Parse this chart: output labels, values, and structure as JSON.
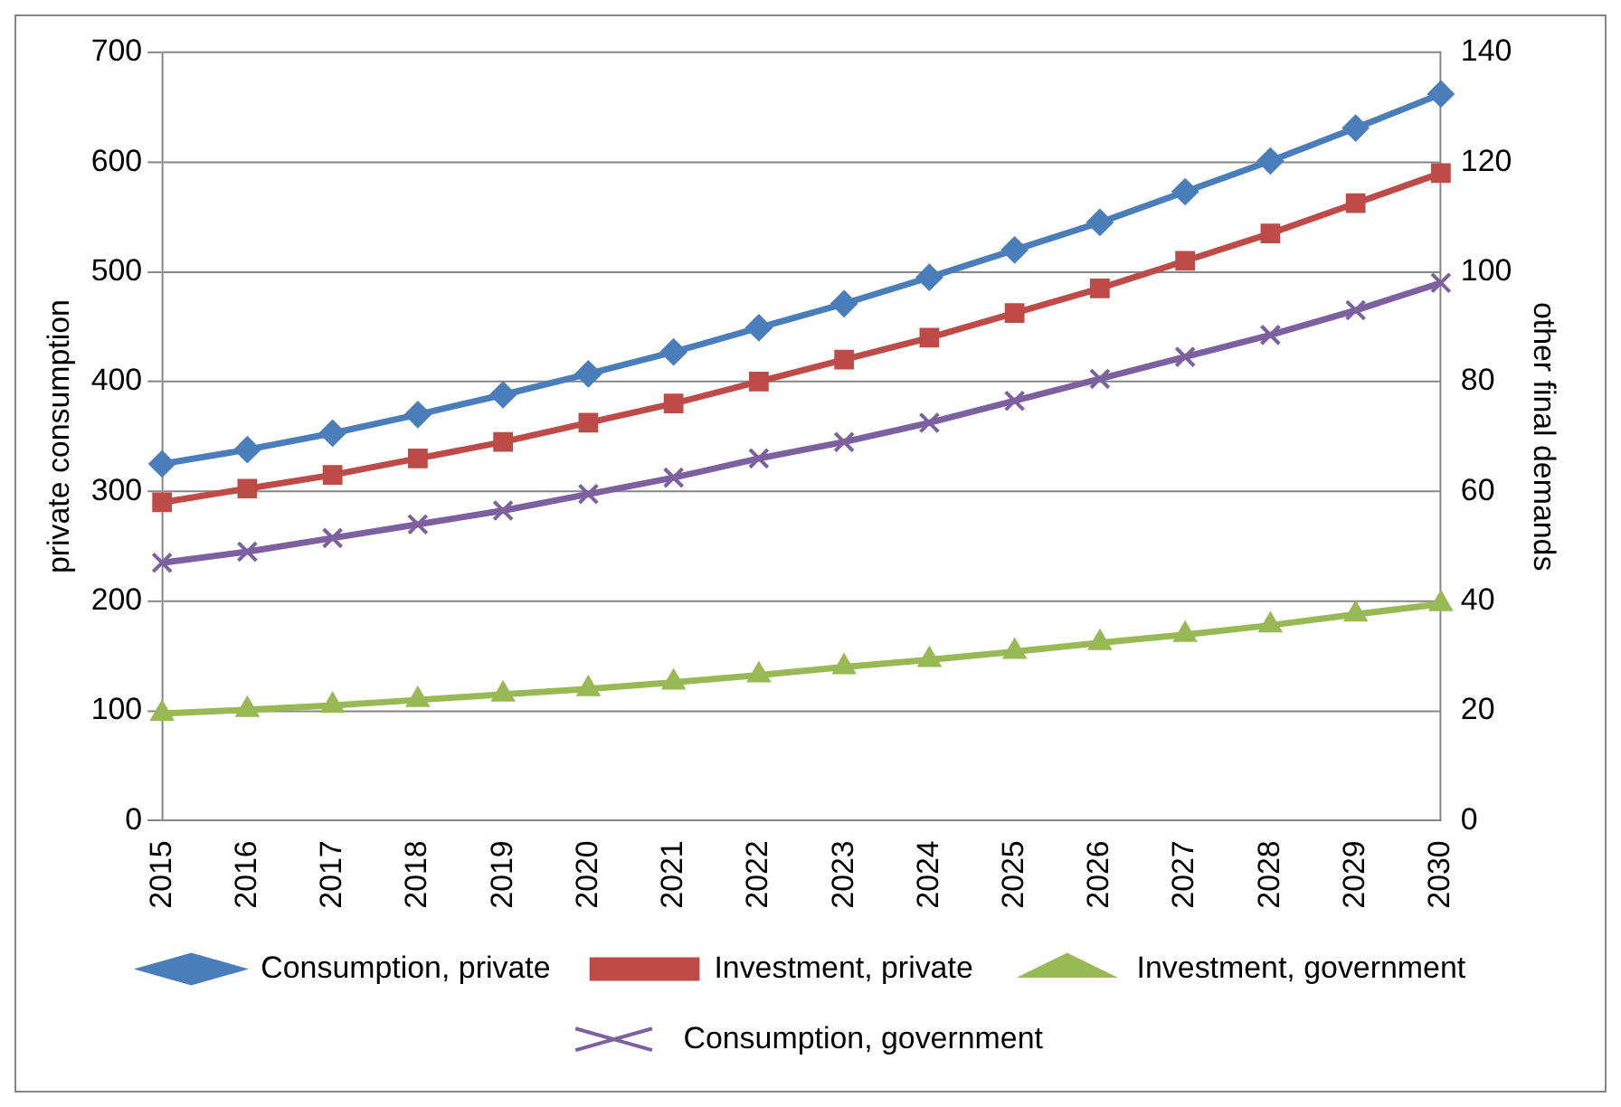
{
  "chart_data": {
    "type": "line",
    "categories": [
      "2015",
      "2016",
      "2017",
      "2018",
      "2019",
      "2020",
      "2021",
      "2022",
      "2023",
      "2024",
      "2025",
      "2026",
      "2027",
      "2028",
      "2029",
      "2030"
    ],
    "ylabel": "private consumption",
    "y2label": "other final demands",
    "ylim": [
      0,
      700
    ],
    "yticks": [
      0,
      100,
      200,
      300,
      400,
      500,
      600,
      700
    ],
    "y2lim": [
      0,
      140
    ],
    "y2ticks": [
      0,
      20,
      40,
      60,
      80,
      100,
      120,
      140
    ],
    "grid": "y",
    "legend": "bottom",
    "line_style": "solid",
    "series": [
      {
        "name": "Consumption, private",
        "color": "#4a7ebb",
        "marker": "diamond",
        "values": [
          325,
          338,
          353,
          370,
          388,
          407,
          427,
          449,
          471,
          495,
          520,
          545,
          573,
          601,
          631,
          662
        ]
      },
      {
        "name": "Investment, private",
        "color": "#be4b48",
        "marker": "square",
        "axis": "y2",
        "values": [
          58,
          60.5,
          63,
          66,
          69,
          72.5,
          76,
          80,
          84,
          88,
          92.5,
          97,
          102,
          107,
          112.5,
          118
        ]
      },
      {
        "name": "Investment, government",
        "color": "#98b954",
        "marker": "triangle",
        "axis": "y2",
        "values": [
          19.5,
          20.2,
          21,
          22,
          23,
          24,
          25.2,
          26.5,
          28,
          29.3,
          30.8,
          32.4,
          33.9,
          35.6,
          37.6,
          39.5
        ]
      },
      {
        "name": "Consumption, government",
        "color": "#7d60a0",
        "marker": "cross",
        "axis": "y2",
        "values": [
          47,
          49,
          51.5,
          54,
          56.5,
          59.5,
          62.5,
          66,
          69,
          72.5,
          76.5,
          80.5,
          84.5,
          88.5,
          93,
          98
        ]
      }
    ]
  }
}
